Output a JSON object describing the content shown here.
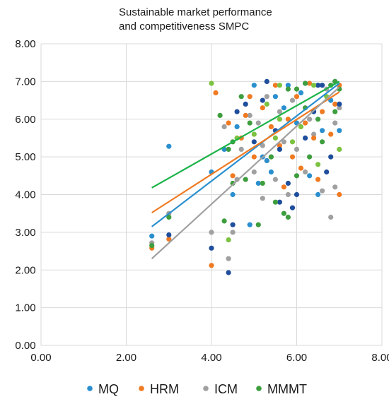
{
  "chart_data": {
    "type": "scatter",
    "title_lines": [
      "Sustainable market performance",
      "and competitiveness SMPC"
    ],
    "xlabel": "",
    "ylabel": "",
    "xlim": [
      0,
      8
    ],
    "ylim": [
      0,
      8
    ],
    "x_ticks": [
      0,
      2,
      4,
      6,
      8
    ],
    "y_ticks": [
      0,
      1,
      2,
      3,
      4,
      5,
      6,
      7,
      8
    ],
    "x_tick_labels": [
      "0.00",
      "2.00",
      "4.00",
      "6.00",
      "8.00"
    ],
    "y_tick_labels": [
      "0.00",
      "1.00",
      "2.00",
      "3.00",
      "4.00",
      "5.00",
      "6.00",
      "7.00",
      "8.00"
    ],
    "grid": true,
    "legend_position": "bottom",
    "series": [
      {
        "name": "MQ",
        "color": "#2a8fcf",
        "dark_color": "#1f4e9c",
        "trendline": {
          "x": [
            2.6,
            7.0
          ],
          "y": [
            3.15,
            6.95
          ]
        },
        "points": [
          [
            2.6,
            2.9
          ],
          [
            3.0,
            2.93
          ],
          [
            3.0,
            5.28
          ],
          [
            4.0,
            2.58
          ],
          [
            4.0,
            4.6
          ],
          [
            4.4,
            1.93
          ],
          [
            4.5,
            4.0
          ],
          [
            4.5,
            3.2
          ],
          [
            4.6,
            5.8
          ],
          [
            4.8,
            6.4
          ],
          [
            4.9,
            3.2
          ],
          [
            5.0,
            5.4
          ],
          [
            5.1,
            4.3
          ],
          [
            5.2,
            6.5
          ],
          [
            5.2,
            5.0
          ],
          [
            5.3,
            7.0
          ],
          [
            5.4,
            4.6
          ],
          [
            5.5,
            5.7
          ],
          [
            5.5,
            6.6
          ],
          [
            5.6,
            3.8
          ],
          [
            5.7,
            6.3
          ],
          [
            5.8,
            4.3
          ],
          [
            5.8,
            6.9
          ],
          [
            5.9,
            3.65
          ],
          [
            6.0,
            5.9
          ],
          [
            6.0,
            4.0
          ],
          [
            6.1,
            6.7
          ],
          [
            6.2,
            5.5
          ],
          [
            6.3,
            4.5
          ],
          [
            6.4,
            6.2
          ],
          [
            6.5,
            4.0
          ],
          [
            6.5,
            6.9
          ],
          [
            6.6,
            5.7
          ],
          [
            6.7,
            4.6
          ],
          [
            6.8,
            6.5
          ],
          [
            6.9,
            7.0
          ],
          [
            7.0,
            5.7
          ],
          [
            7.0,
            6.4
          ],
          [
            4.3,
            5.2
          ],
          [
            4.6,
            6.2
          ],
          [
            5.0,
            6.9
          ],
          [
            5.6,
            5.2
          ],
          [
            6.2,
            6.95
          ],
          [
            6.8,
            5.0
          ],
          [
            5.3,
            4.9
          ],
          [
            6.6,
            6.9
          ]
        ]
      },
      {
        "name": "HRM",
        "color": "#f07a22",
        "trendline": {
          "x": [
            2.6,
            7.0
          ],
          "y": [
            3.52,
            6.72
          ]
        },
        "points": [
          [
            2.6,
            2.58
          ],
          [
            3.0,
            2.82
          ],
          [
            4.0,
            2.12
          ],
          [
            4.1,
            6.7
          ],
          [
            4.4,
            5.9
          ],
          [
            4.5,
            4.5
          ],
          [
            4.7,
            5.5
          ],
          [
            4.9,
            6.6
          ],
          [
            5.0,
            5.0
          ],
          [
            5.2,
            6.3
          ],
          [
            5.3,
            4.9
          ],
          [
            5.5,
            6.9
          ],
          [
            5.6,
            5.3
          ],
          [
            5.7,
            4.2
          ],
          [
            5.8,
            6.0
          ],
          [
            5.9,
            5.0
          ],
          [
            6.0,
            6.6
          ],
          [
            6.1,
            4.7
          ],
          [
            6.2,
            5.9
          ],
          [
            6.3,
            6.95
          ],
          [
            6.4,
            5.5
          ],
          [
            6.6,
            6.2
          ],
          [
            6.8,
            5.6
          ],
          [
            7.0,
            4.0
          ],
          [
            7.0,
            6.9
          ],
          [
            5.4,
            5.8
          ],
          [
            6.5,
            4.4
          ],
          [
            4.8,
            6.1
          ],
          [
            6.9,
            6.4
          ]
        ]
      },
      {
        "name": "ICM",
        "color": "#a0a0a0",
        "trendline": {
          "x": [
            2.6,
            7.0
          ],
          "y": [
            2.3,
            6.85
          ]
        },
        "points": [
          [
            2.6,
            2.72
          ],
          [
            3.0,
            3.5
          ],
          [
            4.0,
            3.0
          ],
          [
            4.3,
            5.8
          ],
          [
            4.4,
            2.3
          ],
          [
            4.5,
            3.0
          ],
          [
            4.6,
            4.4
          ],
          [
            4.7,
            5.2
          ],
          [
            4.9,
            6.1
          ],
          [
            5.0,
            4.6
          ],
          [
            5.1,
            5.9
          ],
          [
            5.2,
            3.9
          ],
          [
            5.3,
            6.6
          ],
          [
            5.4,
            5.0
          ],
          [
            5.5,
            4.4
          ],
          [
            5.6,
            6.2
          ],
          [
            5.7,
            5.4
          ],
          [
            5.8,
            4.0
          ],
          [
            5.9,
            6.5
          ],
          [
            6.0,
            5.2
          ],
          [
            6.2,
            4.6
          ],
          [
            6.3,
            6.0
          ],
          [
            6.4,
            5.6
          ],
          [
            6.6,
            4.1
          ],
          [
            6.7,
            6.8
          ],
          [
            6.8,
            3.4
          ],
          [
            6.9,
            5.9
          ],
          [
            7.0,
            6.3
          ],
          [
            6.9,
            4.2
          ],
          [
            5.2,
            5.3
          ]
        ]
      },
      {
        "name": "MMMT",
        "color": "#3e9e3e",
        "light_color": "#7cc241",
        "trendline": {
          "x": [
            2.6,
            7.0
          ],
          "y": [
            4.18,
            7.0
          ]
        },
        "points": [
          [
            2.6,
            2.65
          ],
          [
            3.0,
            3.4
          ],
          [
            4.0,
            6.95
          ],
          [
            4.2,
            6.1
          ],
          [
            4.3,
            3.3
          ],
          [
            4.4,
            2.8
          ],
          [
            4.5,
            4.3
          ],
          [
            4.5,
            5.4
          ],
          [
            4.6,
            5.5
          ],
          [
            4.7,
            6.6
          ],
          [
            4.8,
            4.4
          ],
          [
            5.0,
            5.6
          ],
          [
            5.1,
            3.2
          ],
          [
            5.2,
            4.3
          ],
          [
            5.3,
            6.4
          ],
          [
            5.4,
            5.0
          ],
          [
            5.5,
            3.8
          ],
          [
            5.6,
            6.0
          ],
          [
            5.7,
            3.5
          ],
          [
            5.8,
            6.8
          ],
          [
            5.9,
            5.4
          ],
          [
            6.0,
            6.8
          ],
          [
            6.0,
            4.5
          ],
          [
            6.1,
            5.8
          ],
          [
            6.2,
            6.3
          ],
          [
            6.3,
            5.0
          ],
          [
            6.4,
            6.9
          ],
          [
            6.5,
            6.0
          ],
          [
            6.6,
            5.4
          ],
          [
            6.7,
            6.6
          ],
          [
            6.8,
            6.9
          ],
          [
            6.9,
            6.2
          ],
          [
            7.0,
            5.2
          ],
          [
            7.0,
            6.8
          ],
          [
            4.4,
            5.2
          ],
          [
            5.6,
            6.9
          ],
          [
            6.2,
            6.95
          ],
          [
            5.8,
            3.4
          ],
          [
            6.5,
            4.8
          ],
          [
            6.9,
            7.0
          ],
          [
            4.9,
            5.9
          ],
          [
            5.5,
            5.5
          ]
        ]
      }
    ]
  }
}
